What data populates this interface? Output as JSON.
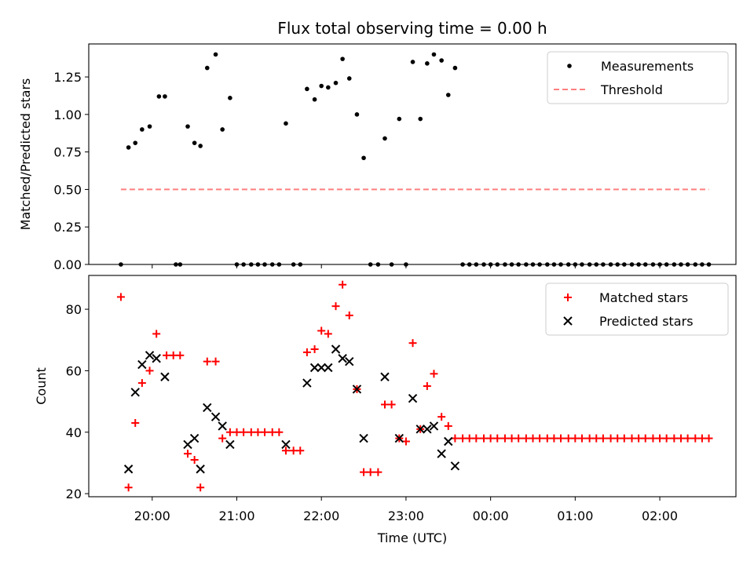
{
  "chart_data": {
    "type": "scatter",
    "title": "Flux total observing time = 0.00 h",
    "xlabel": "Time (UTC)",
    "x_tick_labels": [
      "20:00",
      "21:00",
      "22:00",
      "23:00",
      "00:00",
      "01:00",
      "02:00"
    ],
    "x_ticks_hours": [
      20,
      21,
      22,
      23,
      24,
      25,
      26
    ],
    "xlim_hours": [
      19.25,
      26.9
    ],
    "panels": [
      {
        "ylabel": "Matched/Predicted stars",
        "ylim": [
          0,
          1.47
        ],
        "y_ticks": [
          0.0,
          0.25,
          0.5,
          0.75,
          1.0,
          1.25
        ],
        "y_tick_labels": [
          "0.00",
          "0.25",
          "0.50",
          "0.75",
          "1.00",
          "1.25"
        ],
        "legend_position": "upper right",
        "series": [
          {
            "name": "Measurements",
            "marker": "dot",
            "color": "#000000",
            "points": [
              [
                19.63,
                0.0
              ],
              [
                19.72,
                0.78
              ],
              [
                19.8,
                0.81
              ],
              [
                19.88,
                0.9
              ],
              [
                19.97,
                0.92
              ],
              [
                20.08,
                1.12
              ],
              [
                20.15,
                1.12
              ],
              [
                20.28,
                0.0
              ],
              [
                20.33,
                0.0
              ],
              [
                20.42,
                0.92
              ],
              [
                20.5,
                0.81
              ],
              [
                20.57,
                0.79
              ],
              [
                20.65,
                1.31
              ],
              [
                20.75,
                1.4
              ],
              [
                20.83,
                0.9
              ],
              [
                20.92,
                1.11
              ],
              [
                21.0,
                0.0
              ],
              [
                21.08,
                0.0
              ],
              [
                21.17,
                0.0
              ],
              [
                21.25,
                0.0
              ],
              [
                21.33,
                0.0
              ],
              [
                21.42,
                0.0
              ],
              [
                21.5,
                0.0
              ],
              [
                21.58,
                0.94
              ],
              [
                21.67,
                0.0
              ],
              [
                21.75,
                0.0
              ],
              [
                21.83,
                1.17
              ],
              [
                21.92,
                1.1
              ],
              [
                22.0,
                1.19
              ],
              [
                22.08,
                1.18
              ],
              [
                22.17,
                1.21
              ],
              [
                22.25,
                1.37
              ],
              [
                22.33,
                1.24
              ],
              [
                22.42,
                1.0
              ],
              [
                22.5,
                0.71
              ],
              [
                22.58,
                0.0
              ],
              [
                22.67,
                0.0
              ],
              [
                22.75,
                0.84
              ],
              [
                22.83,
                0.0
              ],
              [
                22.92,
                0.97
              ],
              [
                23.0,
                0.0
              ],
              [
                23.08,
                1.35
              ],
              [
                23.17,
                0.97
              ],
              [
                23.25,
                1.34
              ],
              [
                23.33,
                1.4
              ],
              [
                23.42,
                1.36
              ],
              [
                23.5,
                1.13
              ],
              [
                23.58,
                1.31
              ],
              [
                23.67,
                0.0
              ],
              [
                23.75,
                0.0
              ],
              [
                23.83,
                0.0
              ],
              [
                23.92,
                0.0
              ],
              [
                24.0,
                0.0
              ],
              [
                24.08,
                0.0
              ],
              [
                24.17,
                0.0
              ],
              [
                24.25,
                0.0
              ],
              [
                24.33,
                0.0
              ],
              [
                24.42,
                0.0
              ],
              [
                24.5,
                0.0
              ],
              [
                24.58,
                0.0
              ],
              [
                24.67,
                0.0
              ],
              [
                24.75,
                0.0
              ],
              [
                24.83,
                0.0
              ],
              [
                24.92,
                0.0
              ],
              [
                25.0,
                0.0
              ],
              [
                25.08,
                0.0
              ],
              [
                25.17,
                0.0
              ],
              [
                25.25,
                0.0
              ],
              [
                25.33,
                0.0
              ],
              [
                25.42,
                0.0
              ],
              [
                25.5,
                0.0
              ],
              [
                25.58,
                0.0
              ],
              [
                25.67,
                0.0
              ],
              [
                25.75,
                0.0
              ],
              [
                25.83,
                0.0
              ],
              [
                25.92,
                0.0
              ],
              [
                26.0,
                0.0
              ],
              [
                26.08,
                0.0
              ],
              [
                26.17,
                0.0
              ],
              [
                26.25,
                0.0
              ],
              [
                26.33,
                0.0
              ],
              [
                26.42,
                0.0
              ],
              [
                26.5,
                0.0
              ],
              [
                26.58,
                0.0
              ]
            ]
          },
          {
            "name": "Threshold",
            "marker": "dashed-line",
            "color": "#ff7f7f",
            "points": [
              [
                19.63,
                0.5
              ],
              [
                26.58,
                0.5
              ]
            ]
          }
        ]
      },
      {
        "ylabel": "Count",
        "ylim": [
          19,
          91
        ],
        "y_ticks": [
          20,
          40,
          60,
          80
        ],
        "y_tick_labels": [
          "20",
          "40",
          "60",
          "80"
        ],
        "legend_position": "upper right",
        "series": [
          {
            "name": "Matched stars",
            "marker": "plus",
            "color": "#ff0000",
            "points": [
              [
                19.63,
                84
              ],
              [
                19.72,
                22
              ],
              [
                19.8,
                43
              ],
              [
                19.88,
                56
              ],
              [
                19.97,
                60
              ],
              [
                20.05,
                72
              ],
              [
                20.17,
                65
              ],
              [
                20.25,
                65
              ],
              [
                20.33,
                65
              ],
              [
                20.42,
                33
              ],
              [
                20.5,
                31
              ],
              [
                20.57,
                22
              ],
              [
                20.65,
                63
              ],
              [
                20.75,
                63
              ],
              [
                20.83,
                38
              ],
              [
                20.92,
                40
              ],
              [
                21.0,
                40
              ],
              [
                21.08,
                40
              ],
              [
                21.17,
                40
              ],
              [
                21.25,
                40
              ],
              [
                21.33,
                40
              ],
              [
                21.42,
                40
              ],
              [
                21.5,
                40
              ],
              [
                21.58,
                34
              ],
              [
                21.67,
                34
              ],
              [
                21.75,
                34
              ],
              [
                21.83,
                66
              ],
              [
                21.92,
                67
              ],
              [
                22.0,
                73
              ],
              [
                22.08,
                72
              ],
              [
                22.17,
                81
              ],
              [
                22.25,
                88
              ],
              [
                22.33,
                78
              ],
              [
                22.42,
                54
              ],
              [
                22.5,
                27
              ],
              [
                22.58,
                27
              ],
              [
                22.67,
                27
              ],
              [
                22.75,
                49
              ],
              [
                22.83,
                49
              ],
              [
                22.92,
                38
              ],
              [
                23.0,
                37
              ],
              [
                23.08,
                69
              ],
              [
                23.17,
                41
              ],
              [
                23.25,
                55
              ],
              [
                23.33,
                59
              ],
              [
                23.42,
                45
              ],
              [
                23.5,
                42
              ],
              [
                23.58,
                38
              ],
              [
                23.67,
                38
              ],
              [
                23.75,
                38
              ],
              [
                23.83,
                38
              ],
              [
                23.92,
                38
              ],
              [
                24.0,
                38
              ],
              [
                24.08,
                38
              ],
              [
                24.17,
                38
              ],
              [
                24.25,
                38
              ],
              [
                24.33,
                38
              ],
              [
                24.42,
                38
              ],
              [
                24.5,
                38
              ],
              [
                24.58,
                38
              ],
              [
                24.67,
                38
              ],
              [
                24.75,
                38
              ],
              [
                24.83,
                38
              ],
              [
                24.92,
                38
              ],
              [
                25.0,
                38
              ],
              [
                25.08,
                38
              ],
              [
                25.17,
                38
              ],
              [
                25.25,
                38
              ],
              [
                25.33,
                38
              ],
              [
                25.42,
                38
              ],
              [
                25.5,
                38
              ],
              [
                25.58,
                38
              ],
              [
                25.67,
                38
              ],
              [
                25.75,
                38
              ],
              [
                25.83,
                38
              ],
              [
                25.92,
                38
              ],
              [
                26.0,
                38
              ],
              [
                26.08,
                38
              ],
              [
                26.17,
                38
              ],
              [
                26.25,
                38
              ],
              [
                26.33,
                38
              ],
              [
                26.42,
                38
              ],
              [
                26.5,
                38
              ],
              [
                26.58,
                38
              ]
            ]
          },
          {
            "name": "Predicted stars",
            "marker": "x",
            "color": "#000000",
            "points": [
              [
                19.72,
                28
              ],
              [
                19.8,
                53
              ],
              [
                19.88,
                62
              ],
              [
                19.97,
                65
              ],
              [
                20.05,
                64
              ],
              [
                20.15,
                58
              ],
              [
                20.42,
                36
              ],
              [
                20.5,
                38
              ],
              [
                20.57,
                28
              ],
              [
                20.65,
                48
              ],
              [
                20.75,
                45
              ],
              [
                20.83,
                42
              ],
              [
                20.92,
                36
              ],
              [
                21.58,
                36
              ],
              [
                21.83,
                56
              ],
              [
                21.92,
                61
              ],
              [
                22.0,
                61
              ],
              [
                22.08,
                61
              ],
              [
                22.17,
                67
              ],
              [
                22.25,
                64
              ],
              [
                22.33,
                63
              ],
              [
                22.42,
                54
              ],
              [
                22.5,
                38
              ],
              [
                22.75,
                58
              ],
              [
                22.92,
                38
              ],
              [
                23.08,
                51
              ],
              [
                23.17,
                41
              ],
              [
                23.25,
                41
              ],
              [
                23.33,
                42
              ],
              [
                23.42,
                33
              ],
              [
                23.5,
                37
              ],
              [
                23.58,
                29
              ]
            ]
          }
        ]
      }
    ]
  }
}
